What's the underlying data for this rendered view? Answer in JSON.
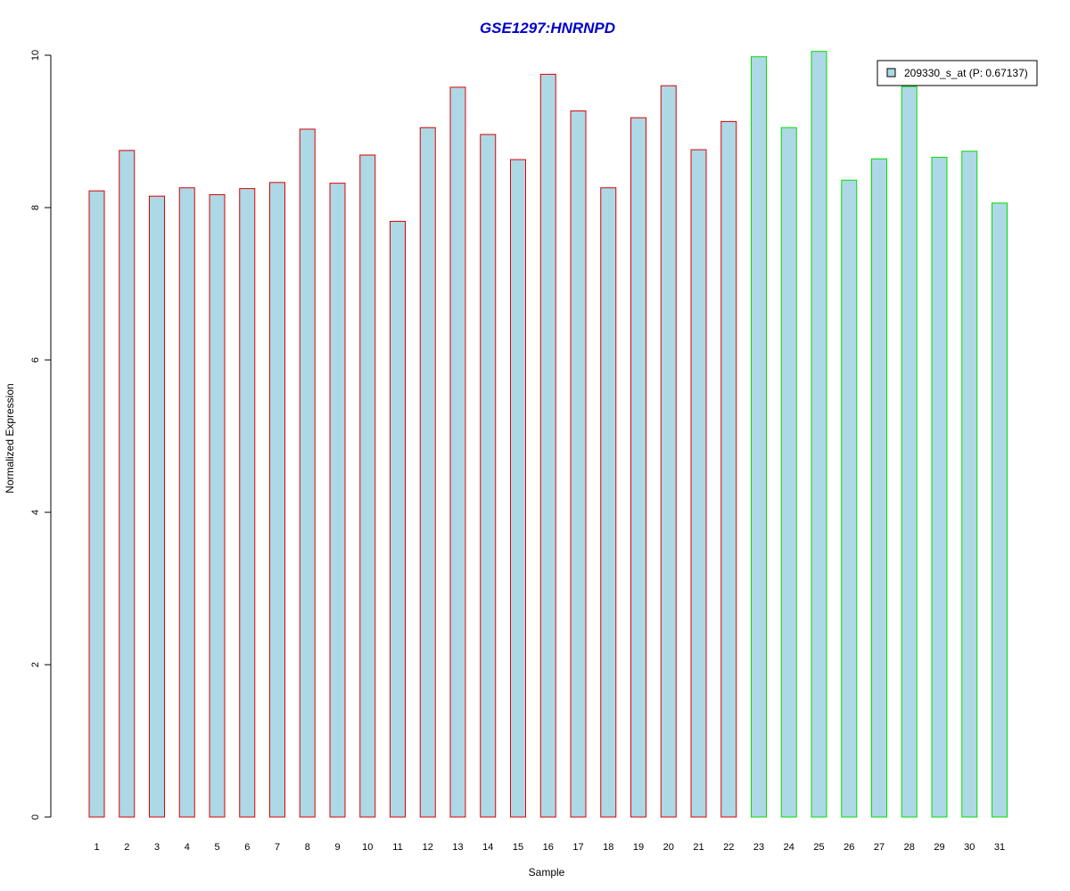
{
  "chart_data": {
    "type": "bar",
    "title": "GSE1297:HNRNPD",
    "xlabel": "Sample",
    "ylabel": "Normalized Expression",
    "categories": [
      "1",
      "2",
      "3",
      "4",
      "5",
      "6",
      "7",
      "8",
      "9",
      "10",
      "11",
      "12",
      "13",
      "14",
      "15",
      "16",
      "17",
      "18",
      "19",
      "20",
      "21",
      "22",
      "23",
      "24",
      "25",
      "26",
      "27",
      "28",
      "29",
      "30",
      "31"
    ],
    "series": [
      {
        "name": "209330_s_at (P: 0.67137)",
        "values": [
          8.22,
          8.75,
          8.15,
          8.26,
          8.17,
          8.25,
          8.33,
          9.03,
          8.32,
          8.69,
          7.82,
          9.05,
          9.58,
          8.96,
          8.63,
          9.75,
          9.27,
          8.26,
          9.18,
          9.6,
          8.76,
          9.13,
          9.98,
          9.05,
          10.05,
          8.36,
          8.64,
          9.59,
          8.66,
          8.74,
          8.06
        ]
      }
    ],
    "groups": [
      {
        "range": [
          1,
          22
        ],
        "outline_color": "#dd0000"
      },
      {
        "range": [
          23,
          31
        ],
        "outline_color": "#00dd00"
      }
    ],
    "ylim": [
      0,
      10
    ],
    "yticks": [
      0,
      2,
      4,
      6,
      8,
      10
    ],
    "grid": false,
    "legend_position": "top-right",
    "colors": {
      "bar_fill": "#add8e6",
      "title": "#0000cc",
      "axis": "#000000",
      "legend_border": "#000000"
    }
  }
}
